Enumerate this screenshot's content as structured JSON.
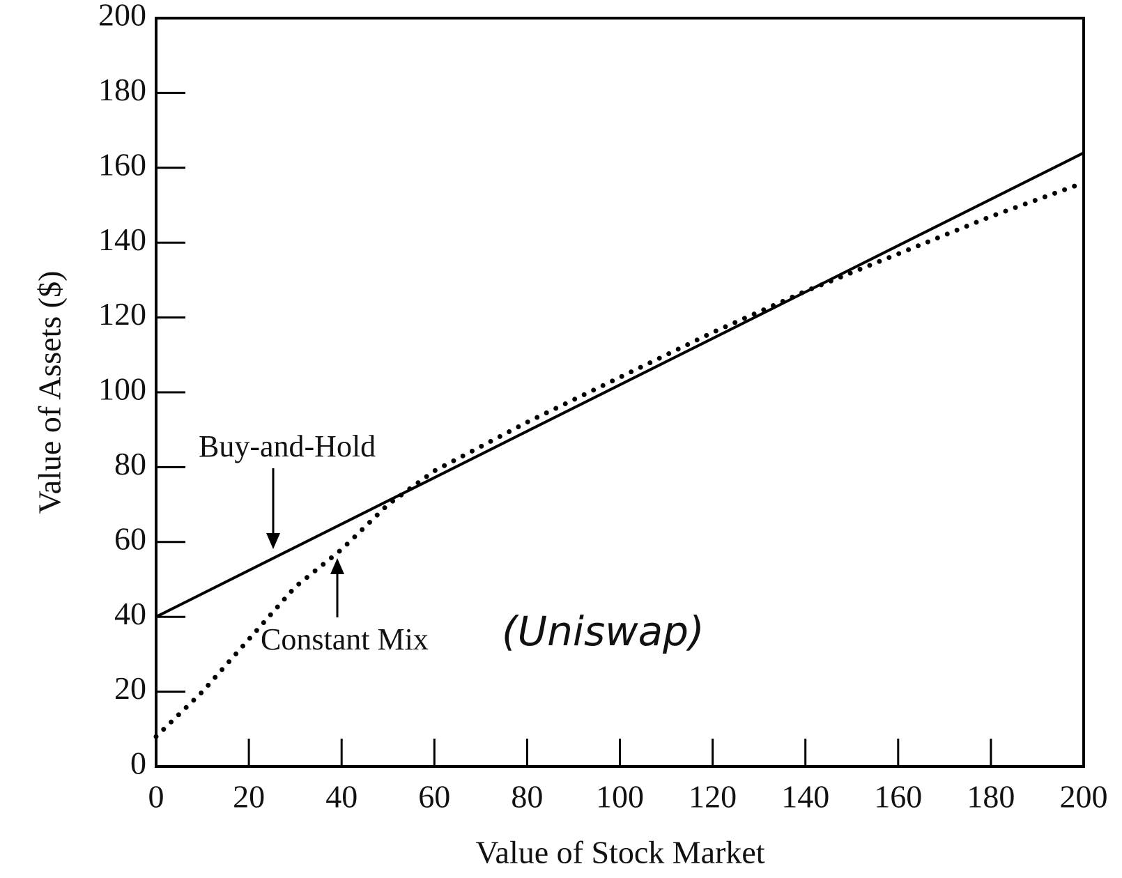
{
  "chart_data": {
    "type": "line",
    "xlabel": "Value of Stock Market",
    "ylabel": "Value of Assets ($)",
    "xlim": [
      0,
      200
    ],
    "ylim": [
      0,
      200
    ],
    "xticks": [
      0,
      20,
      40,
      60,
      80,
      100,
      120,
      140,
      160,
      180,
      200
    ],
    "yticks": [
      0,
      20,
      40,
      60,
      80,
      100,
      120,
      140,
      160,
      180,
      200
    ],
    "grid": false,
    "series": [
      {
        "name": "Buy-and-Hold",
        "color": "#000000",
        "style": "solid",
        "x": [
          0,
          200
        ],
        "values": [
          40,
          164
        ]
      },
      {
        "name": "Constant Mix",
        "color": "#000000",
        "style": "dotted",
        "x": [
          0,
          10,
          20,
          30,
          40,
          50,
          60,
          80,
          100,
          120,
          140,
          160,
          180,
          200
        ],
        "values": [
          8,
          20,
          34,
          48,
          58,
          70,
          79,
          92,
          104,
          116,
          127,
          137,
          147,
          156
        ]
      }
    ],
    "annotations": [
      "(Uniswap)"
    ]
  }
}
